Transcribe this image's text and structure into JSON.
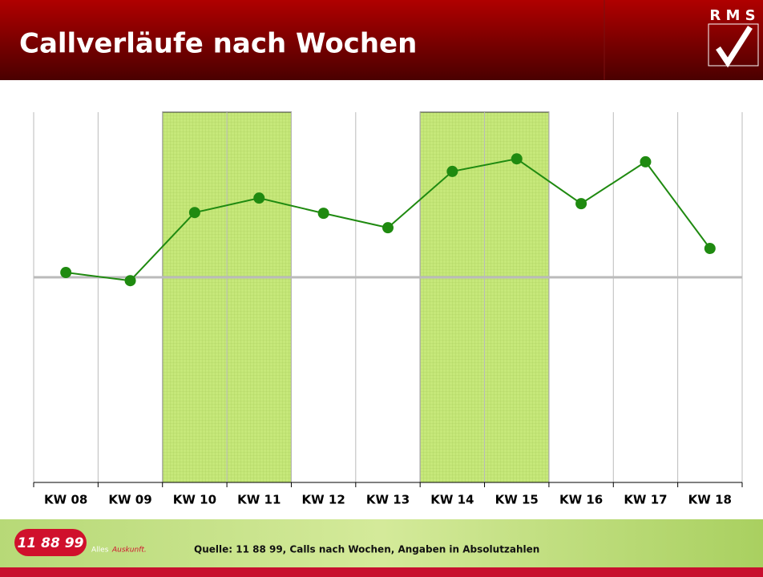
{
  "chart_data": {
    "type": "line",
    "title": "Callverläufe nach Wochen",
    "logo": "R M S",
    "categories": [
      "KW 08",
      "KW 09",
      "KW 10",
      "KW 11",
      "KW 12",
      "KW 13",
      "KW 14",
      "KW 15",
      "KW 16",
      "KW 17",
      "KW 18"
    ],
    "series": [
      {
        "color": "#1f8a10",
        "values": [
          56.7,
          54.5,
          72.9,
          76.8,
          72.7,
          68.8,
          84.0,
          87.4,
          75.3,
          86.6,
          63.2
        ]
      }
    ],
    "ylim": [
      0,
      100
    ],
    "reference_line": 55.4,
    "highlight": [
      [
        2,
        3
      ],
      [
        6,
        7
      ]
    ],
    "highlight_color": "#c6e87a",
    "footer": {
      "brand": "11 88 99",
      "tagline_1": "Alles",
      "tagline_2": "Auskunft.",
      "source": "Quelle: 11 88 99, Calls nach Wochen, Angaben in Absolutzahlen"
    }
  }
}
